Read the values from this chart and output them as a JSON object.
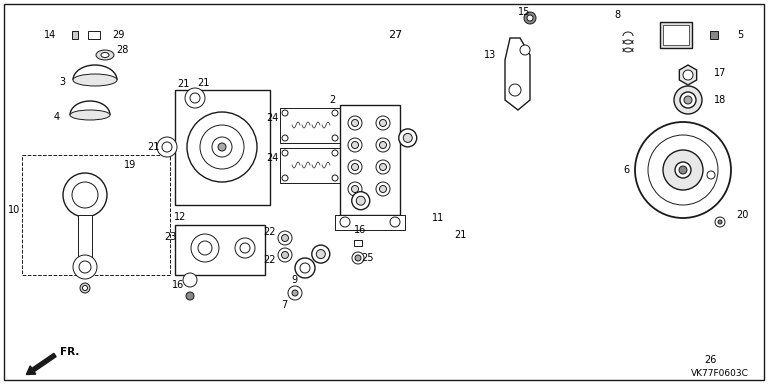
{
  "bg_color": "#ffffff",
  "line_color": "#1a1a1a",
  "watermark": "VK77F0603C",
  "fr_label": "FR.",
  "border": [
    4,
    4,
    760,
    376
  ]
}
